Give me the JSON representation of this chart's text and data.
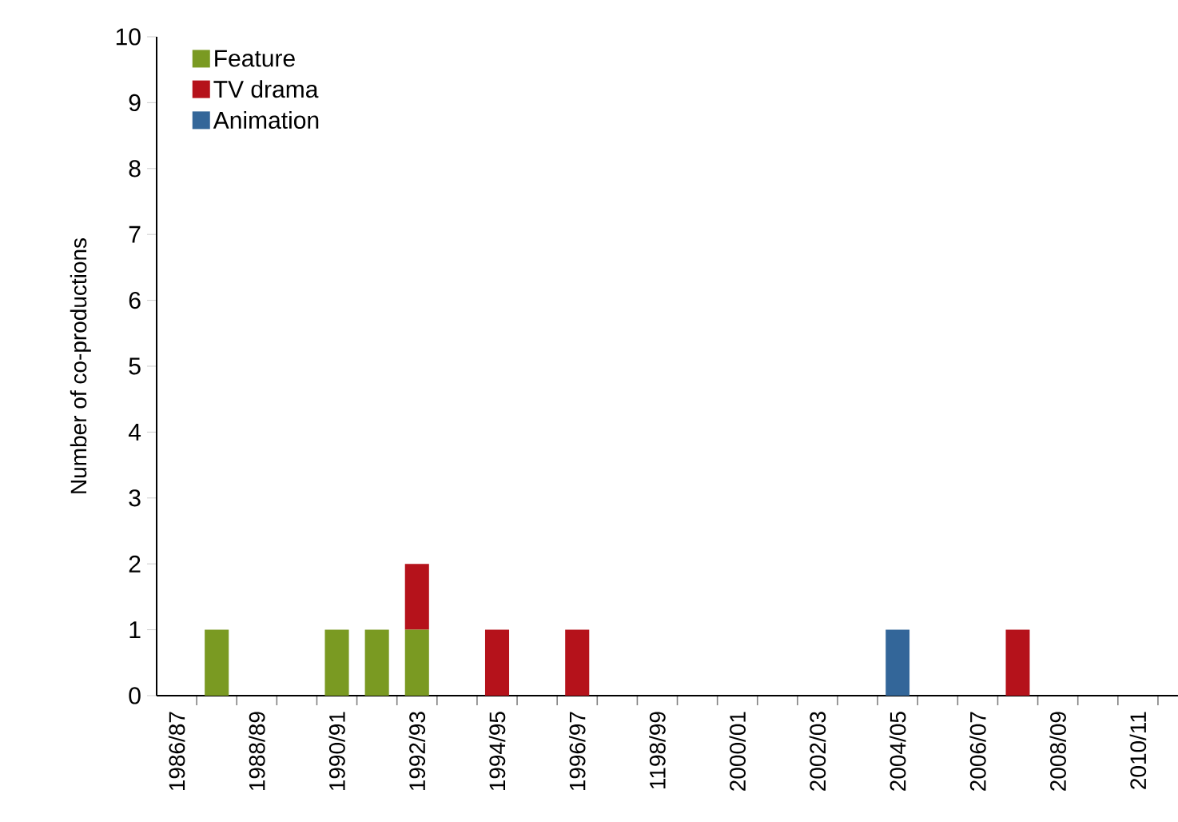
{
  "chart_data": {
    "type": "bar",
    "stacked": true,
    "ylabel": "Number of co-productions",
    "categories": [
      "1986/87",
      null,
      "1988/89",
      null,
      "1990/91",
      null,
      "1992/93",
      null,
      "1994/95",
      null,
      "1996/97",
      null,
      "1198/99",
      null,
      "2000/01",
      null,
      "2002/03",
      null,
      "2004/05",
      null,
      "2006/07",
      null,
      "2008/09",
      null,
      "2010/11"
    ],
    "series": [
      {
        "name": "Feature",
        "color": "#7a9a22",
        "values": [
          0,
          1,
          0,
          0,
          1,
          1,
          1,
          0,
          0,
          0,
          0,
          0,
          0,
          0,
          0,
          0,
          0,
          0,
          0,
          0,
          0,
          0,
          0,
          0,
          0
        ]
      },
      {
        "name": "TV drama",
        "color": "#b5121b",
        "values": [
          0,
          0,
          0,
          0,
          0,
          0,
          1,
          0,
          1,
          0,
          1,
          0,
          0,
          0,
          0,
          0,
          0,
          0,
          0,
          0,
          0,
          1,
          0,
          0,
          0
        ]
      },
      {
        "name": "Animation",
        "color": "#336699",
        "values": [
          0,
          0,
          0,
          0,
          0,
          0,
          0,
          0,
          0,
          0,
          0,
          0,
          0,
          0,
          0,
          0,
          0,
          0,
          1,
          0,
          0,
          0,
          0,
          0,
          0
        ]
      }
    ],
    "ylim": [
      0,
      10
    ],
    "yticks": [
      0,
      1,
      2,
      3,
      4,
      5,
      6,
      7,
      8,
      9,
      10
    ],
    "grid": false,
    "legend": "top left"
  }
}
